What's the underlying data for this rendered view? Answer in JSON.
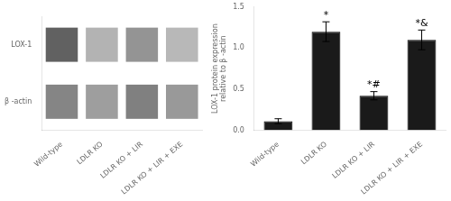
{
  "chart_data": [
    {
      "type": "heatmap",
      "x": [
        "Wild-type",
        "LDLR KO",
        "LDLR KO + LIR",
        "LDLR KO + LIR + EXE"
      ],
      "y": [
        "LOX-1",
        "β -actin"
      ],
      "cells": [
        [
          0.62,
          0.3,
          0.42,
          0.28
        ],
        [
          0.48,
          0.38,
          0.5,
          0.4
        ]
      ],
      "grid": false
    },
    {
      "type": "bar",
      "categories": [
        "Wild-type",
        "LDLR KO",
        "LDLR KO + LIR",
        "LDLR KO + LIR + EXE"
      ],
      "values": [
        0.11,
        1.2,
        0.42,
        1.1
      ],
      "errors": [
        0.03,
        0.12,
        0.05,
        0.12
      ],
      "color": "#1a1a1a",
      "ylabel": "LOX-1 protein expression\nrelative to β -actin",
      "ylim": [
        0,
        1.5
      ],
      "yticks": [
        {
          "value": 0.0,
          "label": "0.0"
        },
        {
          "value": 0.5,
          "label": "0.5"
        },
        {
          "value": 1.0,
          "label": "1.0"
        },
        {
          "value": 1.5,
          "label": "1.5"
        }
      ],
      "annotations": [
        null,
        "*",
        "*#",
        "*&"
      ],
      "grid": false
    }
  ]
}
